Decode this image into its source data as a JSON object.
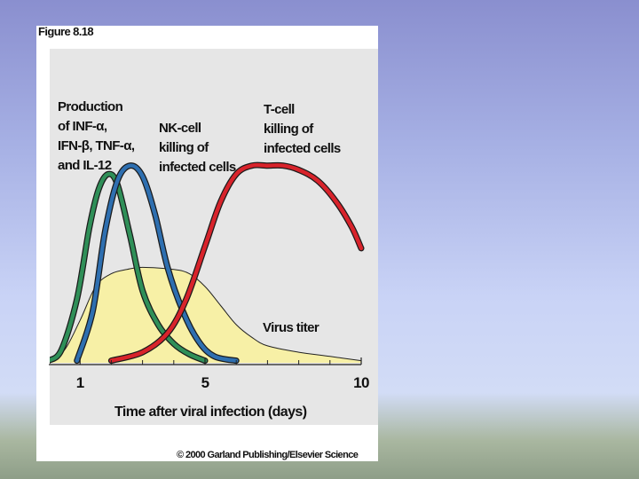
{
  "figure_label": "Figure 8.18",
  "copyright": "© 2000 Garland Publishing/Elsevier Science",
  "chart_data": {
    "type": "line",
    "xlabel": "Time after viral infection (days)",
    "ylabel": "",
    "xlim": [
      0,
      10
    ],
    "ylim": [
      0,
      1
    ],
    "x_ticks": [
      1,
      5,
      10
    ],
    "x_tick_labels": [
      "1",
      "5",
      "10"
    ],
    "minor_ticks": [
      2,
      3,
      4,
      6,
      7,
      8,
      9
    ],
    "series": [
      {
        "name": "Virus titer",
        "label_lines": [
          "Virus titer"
        ],
        "style": "area",
        "color": "#f7f0a6",
        "stroke": "#222222",
        "points": [
          [
            0,
            0.01
          ],
          [
            0.5,
            0.06
          ],
          [
            1,
            0.2
          ],
          [
            1.5,
            0.36
          ],
          [
            2,
            0.42
          ],
          [
            2.5,
            0.44
          ],
          [
            3,
            0.45
          ],
          [
            4,
            0.44
          ],
          [
            4.5,
            0.42
          ],
          [
            5,
            0.36
          ],
          [
            5.5,
            0.27
          ],
          [
            6,
            0.18
          ],
          [
            6.5,
            0.12
          ],
          [
            7,
            0.08
          ],
          [
            8,
            0.05
          ],
          [
            9,
            0.03
          ],
          [
            10,
            0.01
          ]
        ]
      },
      {
        "name": "Production of INF-α, IFN-β, TNF-α, and IL-12",
        "label_lines": [
          "Production",
          "of INF-α,",
          "IFN-β, TNF-α,",
          "and IL-12"
        ],
        "style": "line",
        "color": "#2f8f58",
        "points": [
          [
            0,
            0.01
          ],
          [
            0.4,
            0.06
          ],
          [
            0.9,
            0.3
          ],
          [
            1.3,
            0.64
          ],
          [
            1.6,
            0.82
          ],
          [
            1.9,
            0.89
          ],
          [
            2.2,
            0.84
          ],
          [
            2.6,
            0.6
          ],
          [
            3,
            0.34
          ],
          [
            3.5,
            0.18
          ],
          [
            4,
            0.09
          ],
          [
            4.5,
            0.04
          ],
          [
            5,
            0.01
          ]
        ]
      },
      {
        "name": "NK-cell killing of infected cells",
        "label_lines": [
          "NK-cell",
          "killing of",
          "infected cells"
        ],
        "style": "line",
        "color": "#2e6fb0",
        "points": [
          [
            0.9,
            0.01
          ],
          [
            1.4,
            0.24
          ],
          [
            1.8,
            0.62
          ],
          [
            2.2,
            0.86
          ],
          [
            2.6,
            0.93
          ],
          [
            3,
            0.88
          ],
          [
            3.4,
            0.7
          ],
          [
            3.8,
            0.45
          ],
          [
            4.3,
            0.24
          ],
          [
            4.8,
            0.1
          ],
          [
            5.3,
            0.03
          ],
          [
            6,
            0.01
          ]
        ]
      },
      {
        "name": "T-cell killing of infected cells",
        "label_lines": [
          "T-cell",
          "killing of",
          "infected cells"
        ],
        "style": "line",
        "color": "#d8232b",
        "points": [
          [
            2,
            0.01
          ],
          [
            3,
            0.05
          ],
          [
            3.8,
            0.14
          ],
          [
            4.4,
            0.3
          ],
          [
            5,
            0.55
          ],
          [
            5.5,
            0.76
          ],
          [
            6,
            0.89
          ],
          [
            6.5,
            0.93
          ],
          [
            7,
            0.93
          ],
          [
            7.5,
            0.93
          ],
          [
            8,
            0.91
          ],
          [
            8.6,
            0.86
          ],
          [
            9.2,
            0.76
          ],
          [
            9.7,
            0.64
          ],
          [
            10,
            0.54
          ]
        ]
      }
    ]
  }
}
